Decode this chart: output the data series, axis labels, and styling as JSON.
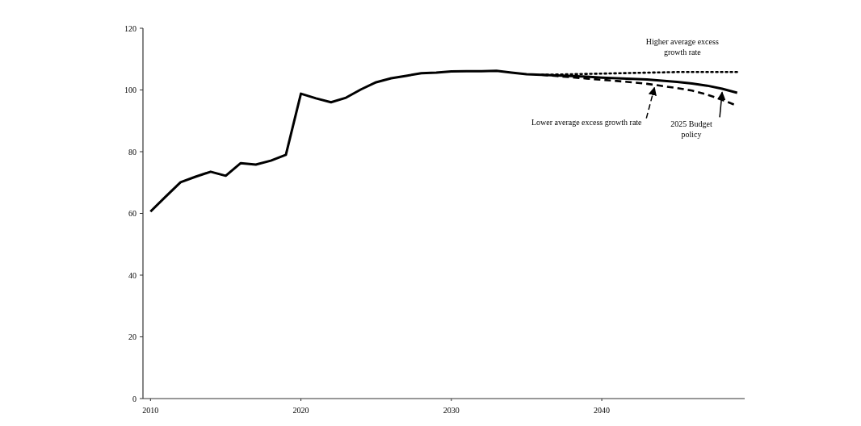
{
  "chart_data": {
    "type": "line",
    "xlim": [
      2009.5,
      2049.5
    ],
    "xticks": [
      2010,
      2020,
      2030,
      2040
    ],
    "ylim": [
      0,
      120
    ],
    "yticks": [
      0,
      20,
      40,
      60,
      80,
      100,
      120
    ],
    "grid": false,
    "marker": "none",
    "series": [
      {
        "color": "#000000",
        "line_style": "solid",
        "x": [
          2010,
          2011,
          2012,
          2013,
          2014,
          2015,
          2016,
          2017,
          2018,
          2019,
          2020,
          2021,
          2022,
          2023,
          2024,
          2025,
          2026,
          2027,
          2028,
          2029,
          2030,
          2031,
          2032,
          2033,
          2034,
          2035,
          2036,
          2037,
          2038,
          2039,
          2040,
          2041,
          2042,
          2043,
          2044,
          2045,
          2046,
          2047,
          2048,
          2049
        ],
        "values": [
          60.6,
          65.4,
          70.1,
          71.9,
          73.5,
          72.2,
          76.3,
          75.8,
          77.1,
          79.0,
          98.8,
          97.3,
          96.0,
          97.5,
          100.2,
          102.5,
          103.8,
          104.6,
          105.4,
          105.6,
          106.0,
          106.1,
          106.1,
          106.2,
          105.6,
          105.1,
          104.9,
          104.7,
          104.5,
          104.3,
          104.0,
          103.8,
          103.6,
          103.4,
          103.0,
          102.6,
          102.1,
          101.4,
          100.4,
          99.1
        ]
      },
      {
        "color": "#000000",
        "line_style": "dashed",
        "x": [
          2036,
          2037,
          2038,
          2039,
          2040,
          2041,
          2042,
          2043,
          2044,
          2045,
          2046,
          2047,
          2048,
          2049
        ],
        "values": [
          104.9,
          104.5,
          104.1,
          103.7,
          103.3,
          102.9,
          102.5,
          102.0,
          101.3,
          100.6,
          99.8,
          98.5,
          96.8,
          94.9
        ]
      },
      {
        "color": "#000000",
        "line_style": "dotted",
        "x": [
          2036,
          2037,
          2038,
          2039,
          2040,
          2041,
          2042,
          2043,
          2044,
          2045,
          2046,
          2047,
          2048,
          2049
        ],
        "values": [
          104.9,
          105.0,
          105.1,
          105.2,
          105.3,
          105.4,
          105.5,
          105.6,
          105.7,
          105.8,
          105.8,
          105.8,
          105.8,
          105.8
        ]
      }
    ],
    "annotations": [
      {
        "text": "Higher average excess growth rate",
        "x": 2046,
        "y": 105.8
      },
      {
        "text": "Lower average excess growth rate",
        "x": 2043.5,
        "y": 101.8
      },
      {
        "text": "2025 Budget policy",
        "x": 2048,
        "y": 100.3
      }
    ]
  }
}
